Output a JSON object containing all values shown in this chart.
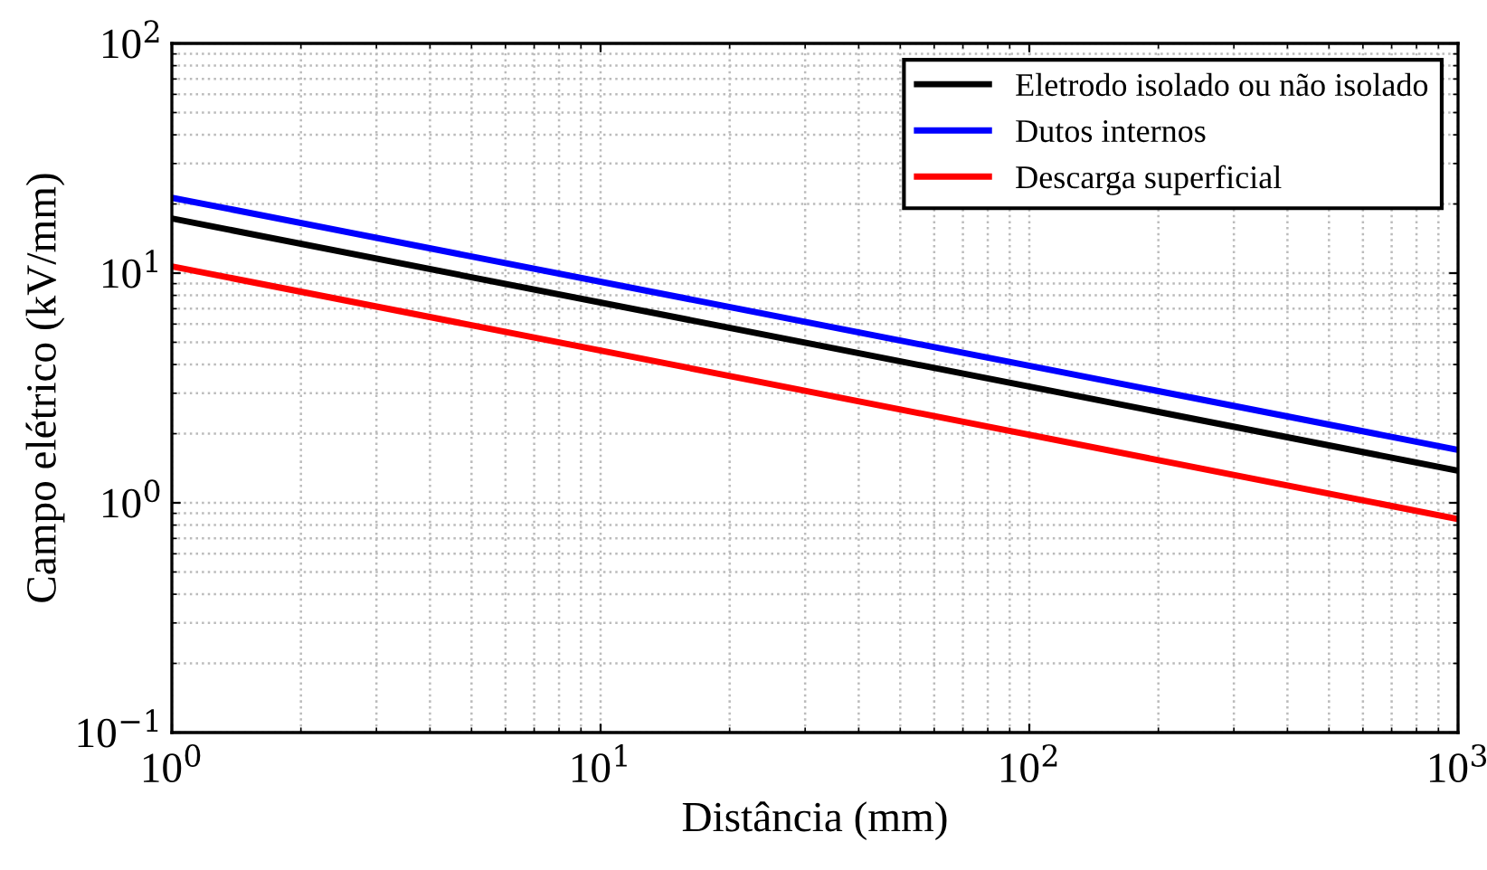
{
  "chart_data": {
    "type": "line",
    "xlabel": "Distância (mm)",
    "ylabel": "Campo elétrico (kV/mm)",
    "log": "xy",
    "grid": true,
    "legend": "top right",
    "line_style": "solid",
    "marker": "none",
    "x": [
      1,
      1000
    ],
    "xlim": [
      1,
      1000
    ],
    "ylim": [
      0.1,
      100
    ],
    "xticks": [
      {
        "value": 1,
        "label": "10$^{0}$"
      },
      {
        "value": 10,
        "label": "10$^{1}$"
      },
      {
        "value": 100,
        "label": "10$^{2}$"
      },
      {
        "value": 1000,
        "label": "10$^{3}$"
      }
    ],
    "yticks": [
      {
        "value": 0.1,
        "label": "10$^{−1}$"
      },
      {
        "value": 1,
        "label": "10$^{0}$"
      },
      {
        "value": 10,
        "label": "10$^{1}$"
      },
      {
        "value": 100,
        "label": "10$^{2}$"
      }
    ],
    "series": [
      {
        "name": "Eletrodo isolado ou não isolado",
        "color": "#000000",
        "values": [
          17.3,
          1.38
        ]
      },
      {
        "name": "Dutos internos",
        "color": "#0000ff",
        "values": [
          21.3,
          1.7
        ]
      },
      {
        "name": "Descarga superficial",
        "color": "#ff0000",
        "values": [
          10.7,
          0.85
        ]
      }
    ]
  }
}
